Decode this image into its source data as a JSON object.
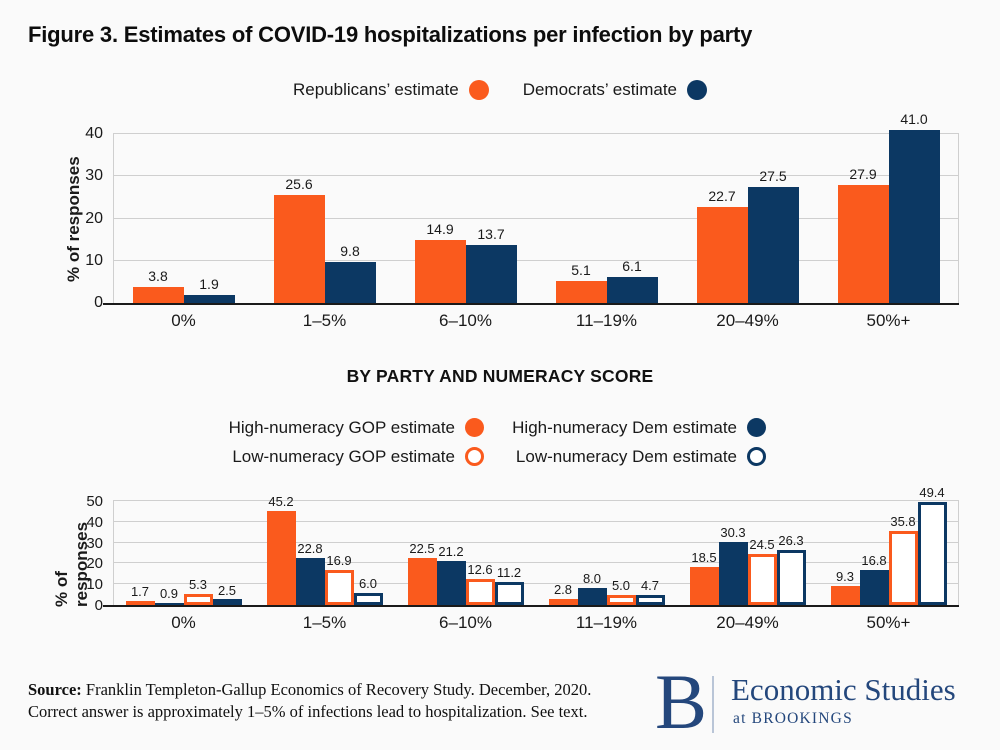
{
  "title": "Figure 3. Estimates of COVID-19 hospitalizations per infection by party",
  "colors": {
    "orange": "#fa5a1d",
    "navy": "#0c3863",
    "gridline": "#cfcfcf",
    "baseline": "#1a1a1a",
    "background": "#fafafa",
    "logo_navy": "#24477c",
    "logo_divider": "#b9c5d7"
  },
  "chart_data": [
    {
      "type": "bar",
      "title": "",
      "categories": [
        "0%",
        "1–5%",
        "6–10%",
        "11–19%",
        "20–49%",
        "50%+"
      ],
      "series": [
        {
          "name": "Republicans’ estimate",
          "style": "filled-orange",
          "values": [
            3.8,
            25.6,
            14.9,
            5.1,
            22.7,
            27.9
          ]
        },
        {
          "name": "Democrats’ estimate",
          "style": "filled-navy",
          "values": [
            1.9,
            9.8,
            13.7,
            6.1,
            27.5,
            41.0
          ]
        }
      ],
      "xlabel": "",
      "ylabel": "% of responses",
      "yticks": [
        0,
        10,
        20,
        30,
        40
      ],
      "ylim": [
        0,
        45
      ],
      "grid": true,
      "legend_position": "top-center",
      "value_labels": true
    },
    {
      "type": "bar",
      "title": "BY PARTY AND NUMERACY SCORE",
      "categories": [
        "0%",
        "1–5%",
        "6–10%",
        "11–19%",
        "20–49%",
        "50%+"
      ],
      "series": [
        {
          "name": "High-numeracy GOP estimate",
          "style": "filled-orange",
          "values": [
            1.7,
            45.2,
            22.5,
            2.8,
            18.5,
            9.3
          ]
        },
        {
          "name": "High-numeracy Dem estimate",
          "style": "filled-navy",
          "values": [
            0.9,
            22.8,
            21.2,
            8.0,
            30.3,
            16.8
          ]
        },
        {
          "name": "Low-numeracy GOP estimate",
          "style": "outline-orange",
          "values": [
            5.3,
            16.9,
            12.6,
            5.0,
            24.5,
            35.8
          ]
        },
        {
          "name": "Low-numeracy Dem estimate",
          "style": "outline-navy",
          "values": [
            2.5,
            6.0,
            11.2,
            4.7,
            26.3,
            49.4
          ]
        }
      ],
      "xlabel": "",
      "ylabel": "% of responses",
      "yticks": [
        0,
        10,
        20,
        30,
        40,
        50
      ],
      "ylim": [
        0,
        52
      ],
      "grid": true,
      "legend_position": "top-center",
      "value_labels": true
    }
  ],
  "footer": {
    "source_label": "Source:",
    "source_text_1": "Franklin Templeton-Gallup Economics of Recovery Study. December, 2020.",
    "source_text_2": "Correct answer is approximately 1–5% of infections lead to hospitalization. See text.",
    "logo": {
      "initial": "B",
      "name": "Economic Studies",
      "subtitle": "at BROOKINGS"
    }
  }
}
